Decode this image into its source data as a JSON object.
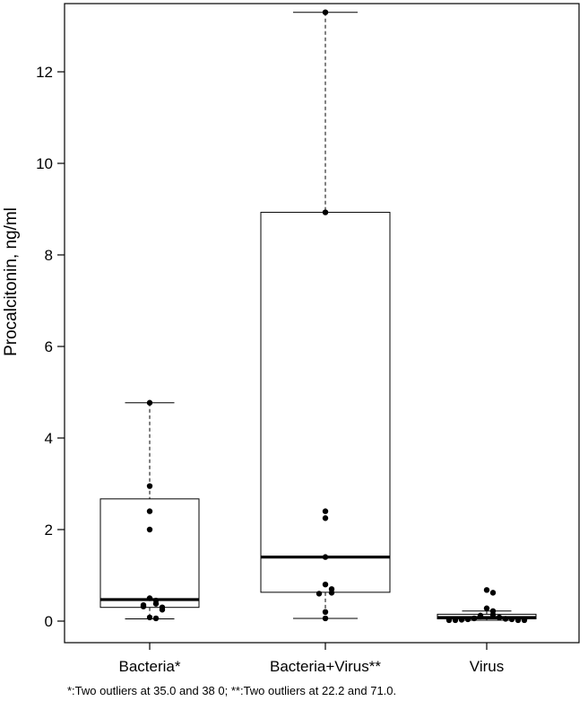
{
  "chart_data": {
    "type": "boxplot",
    "ylabel": "Procalcitonin, ng/ml",
    "xlabel": "",
    "ylim": [
      -0.5,
      13.3
    ],
    "yticks": [
      0,
      2,
      4,
      6,
      8,
      10,
      12
    ],
    "categories": [
      "Bacteria*",
      "Bacteria+Virus**",
      "Virus"
    ],
    "boxes": [
      {
        "name": "Bacteria*",
        "whisker_low": 0.05,
        "q1": 0.3,
        "median": 0.47,
        "q3": 2.67,
        "whisker_high": 4.77,
        "points": [
          4.77,
          2.95,
          2.4,
          2.0,
          0.5,
          0.45,
          0.38,
          0.35,
          0.32,
          0.3,
          0.25,
          0.08,
          0.06
        ]
      },
      {
        "name": "Bacteria+Virus**",
        "whisker_low": 0.06,
        "q1": 0.63,
        "median": 1.4,
        "q3": 8.93,
        "whisker_high": 13.3,
        "points": [
          13.3,
          8.93,
          2.4,
          2.25,
          1.4,
          0.8,
          0.7,
          0.62,
          0.6,
          0.2,
          0.06
        ]
      },
      {
        "name": "Virus",
        "whisker_low": 0.02,
        "q1": 0.05,
        "median": 0.08,
        "q3": 0.15,
        "whisker_high": 0.22,
        "points": [
          0.68,
          0.62,
          0.28,
          0.22,
          0.14,
          0.12,
          0.1,
          0.08,
          0.06,
          0.05,
          0.04,
          0.04,
          0.03,
          0.03,
          0.02,
          0.02,
          0.02,
          0.02
        ]
      }
    ],
    "grid": false,
    "legend": "none",
    "colors": {
      "box": "#000000",
      "points": "#000000"
    }
  },
  "footnote": "*:Two outliers at 35.0 and 38 0; **:Two outliers at 22.2 and 71.0."
}
